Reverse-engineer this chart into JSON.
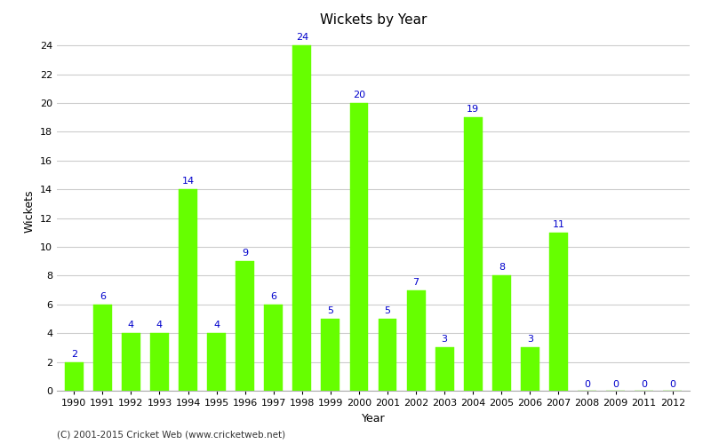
{
  "years": [
    1990,
    1991,
    1992,
    1993,
    1994,
    1995,
    1996,
    1997,
    1998,
    1999,
    2000,
    2001,
    2002,
    2003,
    2004,
    2005,
    2006,
    2007,
    2008,
    2009,
    2011,
    2012
  ],
  "wickets": [
    2,
    6,
    4,
    4,
    14,
    4,
    9,
    6,
    24,
    5,
    20,
    5,
    7,
    3,
    19,
    8,
    3,
    11,
    0,
    0,
    0,
    0
  ],
  "bar_color": "#66ff00",
  "bar_edge_color": "#66ff00",
  "label_color": "#0000cc",
  "title": "Wickets by Year",
  "xlabel": "Year",
  "ylabel": "Wickets",
  "ylim": [
    0,
    25
  ],
  "yticks": [
    0,
    2,
    4,
    6,
    8,
    10,
    12,
    14,
    16,
    18,
    20,
    22,
    24
  ],
  "background_color": "#ffffff",
  "grid_color": "#cccccc",
  "footer": "(C) 2001-2015 Cricket Web (www.cricketweb.net)",
  "title_fontsize": 11,
  "label_fontsize": 9,
  "tick_fontsize": 8,
  "annotation_fontsize": 8
}
